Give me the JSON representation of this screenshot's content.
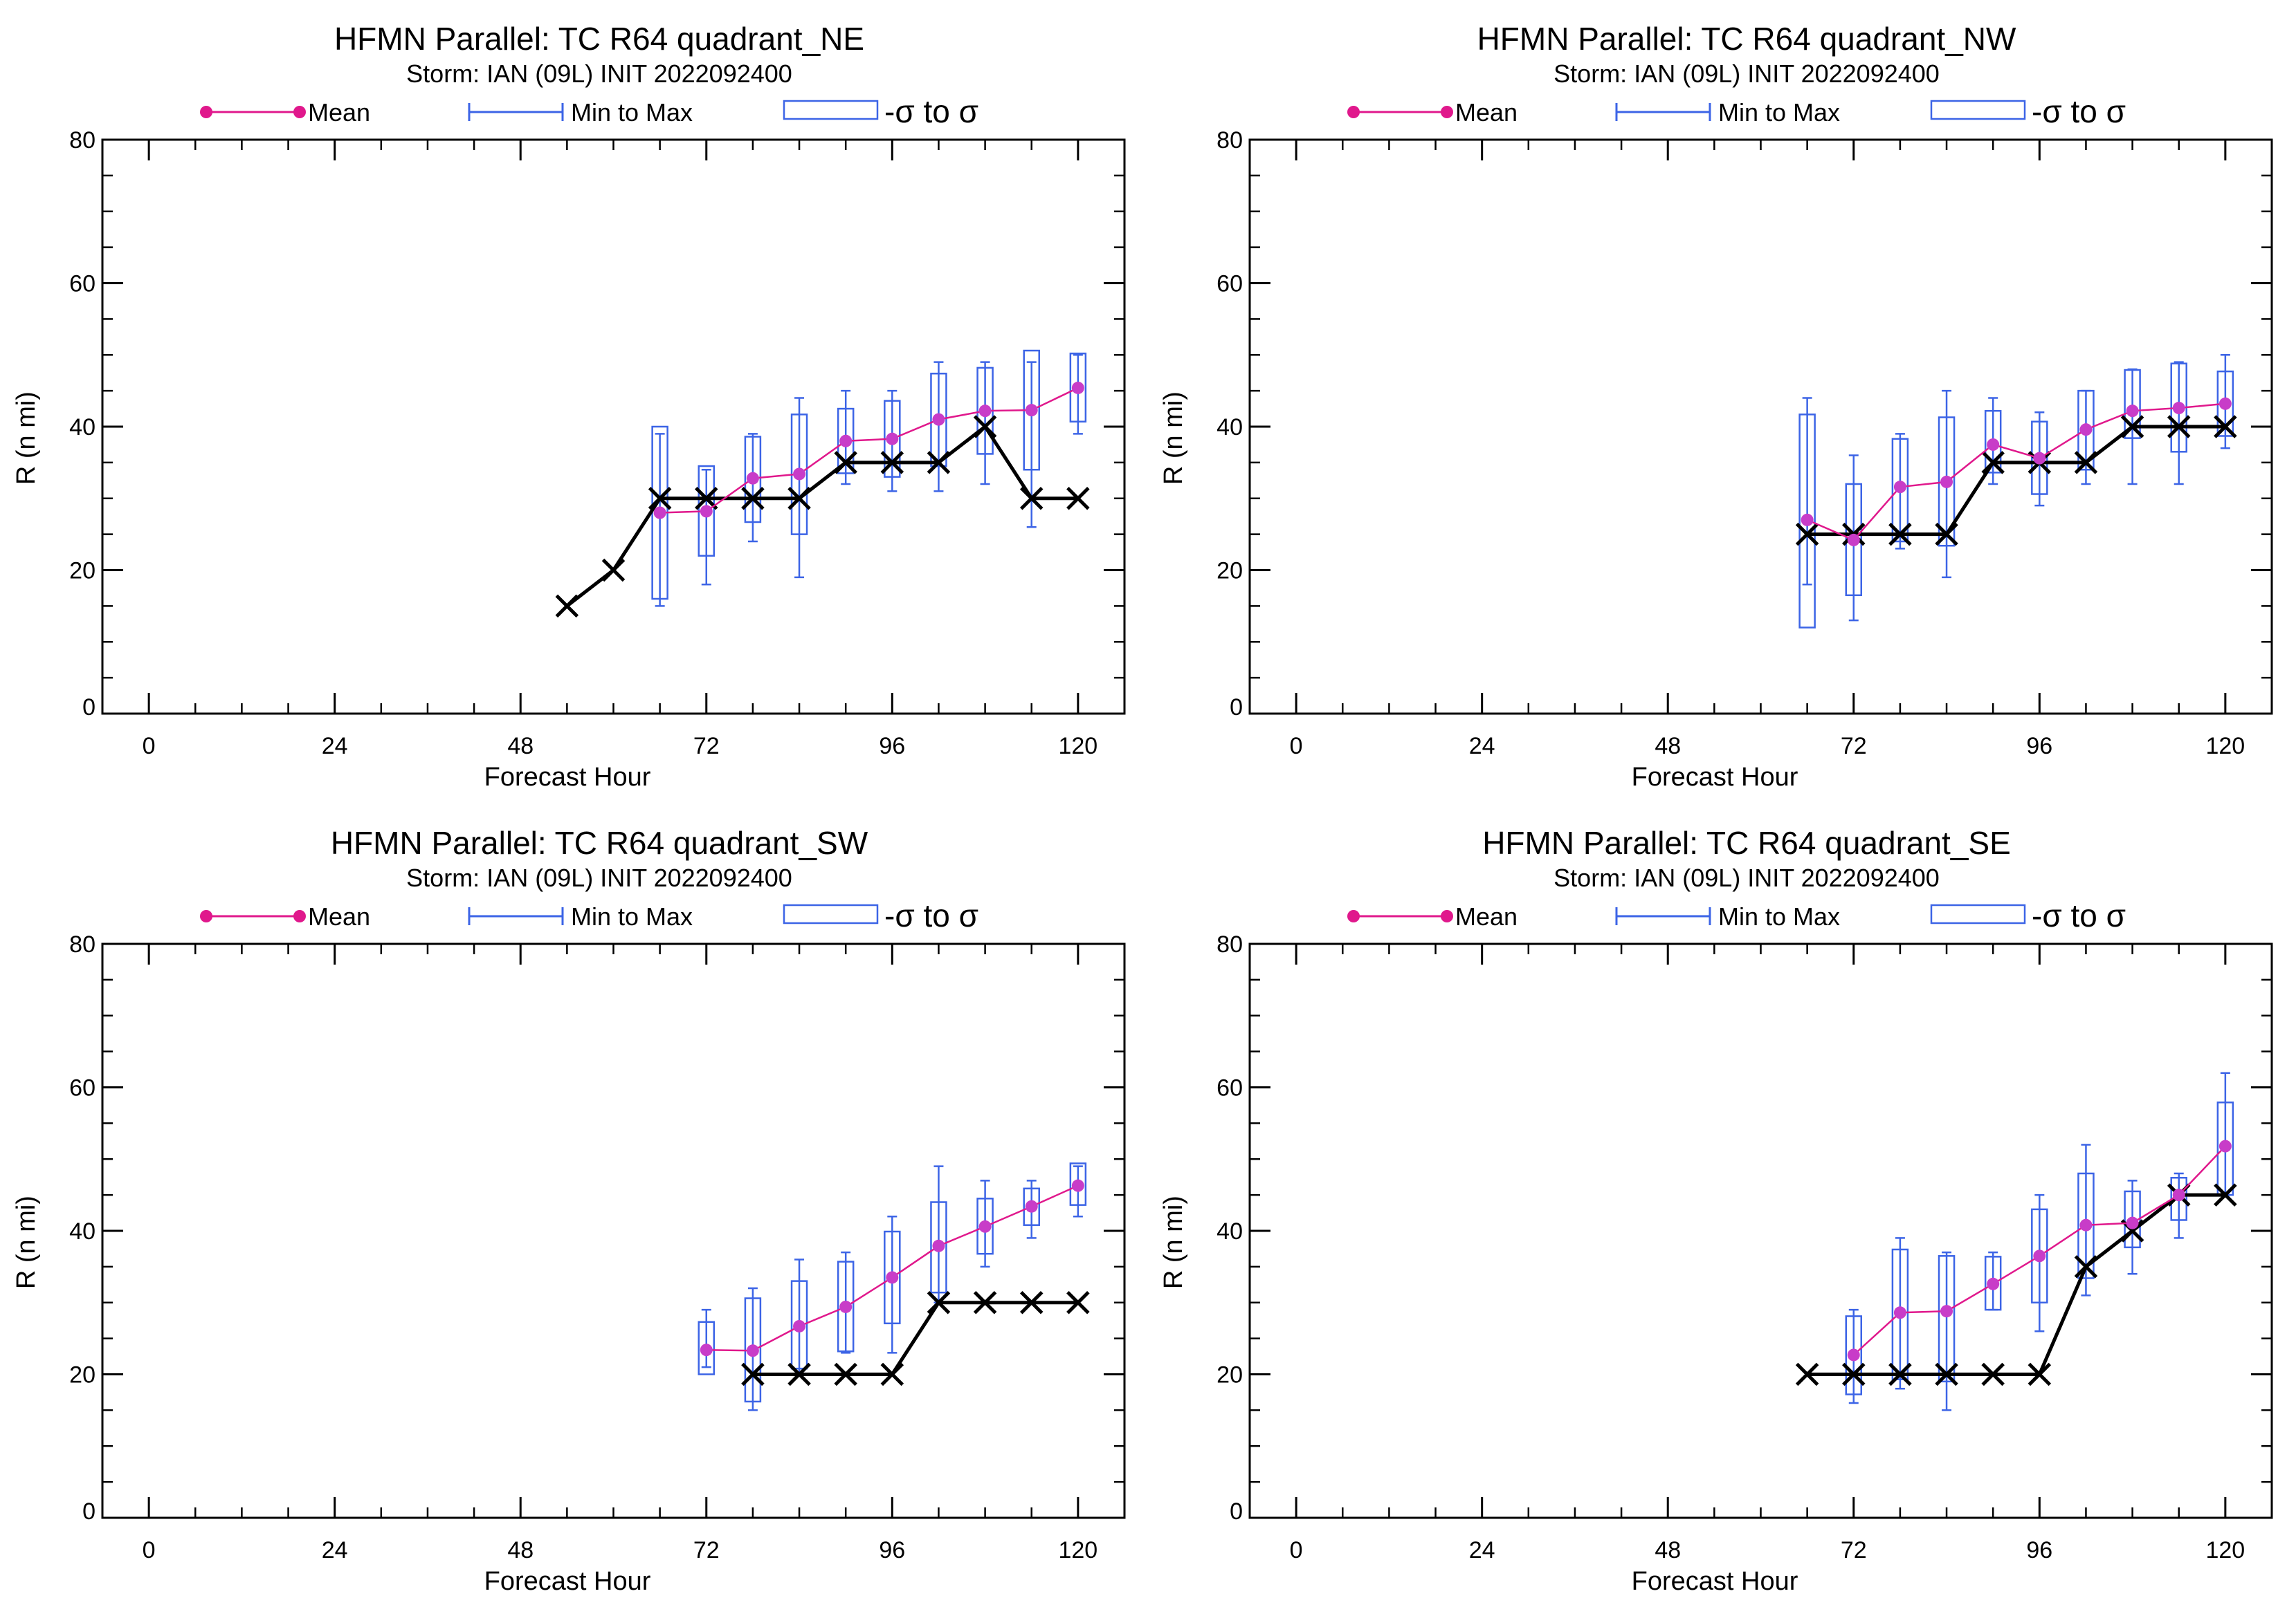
{
  "colors": {
    "mean": "#e0188c",
    "mean_marker": "#c83cc8",
    "range": "#3c64e6",
    "box": "#3c64e6",
    "best_track": "#000000"
  },
  "legend": {
    "mean_label": "Mean",
    "range_label": "Min to Max",
    "sigma_label": "-σ to σ"
  },
  "chart_data": [
    {
      "type": "box",
      "title": "HFMN Parallel: TC  R64 quadrant_NE",
      "subtitle": "Storm: IAN (09L) INIT 2022092400",
      "xlabel": "Forecast Hour",
      "ylabel": "R (n mi)",
      "xlim": [
        -6,
        126
      ],
      "ylim": [
        0,
        80
      ],
      "xticks": [
        "0",
        "24",
        "48",
        "72",
        "96",
        "120"
      ],
      "yticks": [
        "0",
        "20",
        "40",
        "60",
        "80"
      ],
      "best_track": {
        "x": [
          54,
          60,
          66,
          72,
          78,
          84,
          90,
          96,
          102,
          108,
          114,
          120
        ],
        "y": [
          15,
          20,
          30,
          30,
          30,
          30,
          35,
          35,
          35,
          40,
          30,
          30
        ]
      },
      "mean": {
        "x": [
          66,
          72,
          78,
          84,
          90,
          96,
          102,
          108,
          114,
          120
        ],
        "y": [
          28,
          28.2,
          32.8,
          33.4,
          38,
          38.3,
          41,
          42.2,
          42.3,
          45.4
        ]
      },
      "range": [
        {
          "x": 66,
          "min": 15,
          "max": 39
        },
        {
          "x": 72,
          "min": 18,
          "max": 34
        },
        {
          "x": 78,
          "min": 24,
          "max": 39
        },
        {
          "x": 84,
          "min": 19,
          "max": 44
        },
        {
          "x": 90,
          "min": 32,
          "max": 45
        },
        {
          "x": 96,
          "min": 31,
          "max": 45
        },
        {
          "x": 102,
          "min": 31,
          "max": 49
        },
        {
          "x": 108,
          "min": 32,
          "max": 49
        },
        {
          "x": 114,
          "min": 26,
          "max": 49
        },
        {
          "x": 120,
          "min": 39,
          "max": 50
        }
      ],
      "sigma": [
        {
          "x": 66,
          "low": 16,
          "high": 40
        },
        {
          "x": 72,
          "low": 22,
          "high": 34.5
        },
        {
          "x": 78,
          "low": 26.7,
          "high": 38.6
        },
        {
          "x": 84,
          "low": 25,
          "high": 41.7
        },
        {
          "x": 90,
          "low": 33.5,
          "high": 42.5
        },
        {
          "x": 96,
          "low": 33,
          "high": 43.6
        },
        {
          "x": 102,
          "low": 34.5,
          "high": 47.4
        },
        {
          "x": 108,
          "low": 36.2,
          "high": 48.2
        },
        {
          "x": 114,
          "low": 34,
          "high": 50.6
        },
        {
          "x": 120,
          "low": 40.7,
          "high": 50.2
        }
      ]
    },
    {
      "type": "box",
      "title": "HFMN Parallel: TC  R64 quadrant_NW",
      "subtitle": "Storm: IAN (09L) INIT 2022092400",
      "xlabel": "Forecast Hour",
      "ylabel": "R (n mi)",
      "xlim": [
        -6,
        126
      ],
      "ylim": [
        0,
        80
      ],
      "xticks": [
        "0",
        "24",
        "48",
        "72",
        "96",
        "120"
      ],
      "yticks": [
        "0",
        "20",
        "40",
        "60",
        "80"
      ],
      "best_track": {
        "x": [
          66,
          72,
          78,
          84,
          90,
          96,
          102,
          108,
          114,
          120
        ],
        "y": [
          25,
          25,
          25,
          25,
          35,
          35,
          35,
          40,
          40,
          40
        ]
      },
      "mean": {
        "x": [
          66,
          72,
          78,
          84,
          90,
          96,
          102,
          108,
          114,
          120
        ],
        "y": [
          27,
          24.2,
          31.6,
          32.3,
          37.5,
          35.6,
          39.6,
          42.2,
          42.6,
          43.2
        ]
      },
      "range": [
        {
          "x": 66,
          "min": 18,
          "max": 44
        },
        {
          "x": 72,
          "min": 13,
          "max": 36
        },
        {
          "x": 78,
          "min": 23,
          "max": 39
        },
        {
          "x": 84,
          "min": 19,
          "max": 45
        },
        {
          "x": 90,
          "min": 32,
          "max": 44
        },
        {
          "x": 96,
          "min": 29,
          "max": 42
        },
        {
          "x": 102,
          "min": 32,
          "max": 45
        },
        {
          "x": 108,
          "min": 32,
          "max": 48
        },
        {
          "x": 114,
          "min": 32,
          "max": 49
        },
        {
          "x": 120,
          "min": 37,
          "max": 50
        }
      ],
      "sigma": [
        {
          "x": 66,
          "low": 12,
          "high": 41.7
        },
        {
          "x": 72,
          "low": 16.5,
          "high": 32
        },
        {
          "x": 78,
          "low": 24,
          "high": 38.3
        },
        {
          "x": 84,
          "low": 23.4,
          "high": 41.3
        },
        {
          "x": 90,
          "low": 33.6,
          "high": 42.2
        },
        {
          "x": 96,
          "low": 30.6,
          "high": 40.7
        },
        {
          "x": 102,
          "low": 34,
          "high": 45
        },
        {
          "x": 108,
          "low": 38.4,
          "high": 47.9
        },
        {
          "x": 114,
          "low": 36.5,
          "high": 48.8
        },
        {
          "x": 120,
          "low": 38.7,
          "high": 47.7
        }
      ]
    },
    {
      "type": "box",
      "title": "HFMN Parallel: TC  R64 quadrant_SW",
      "subtitle": "Storm: IAN (09L) INIT 2022092400",
      "xlabel": "Forecast Hour",
      "ylabel": "R (n mi)",
      "xlim": [
        -6,
        126
      ],
      "ylim": [
        0,
        80
      ],
      "xticks": [
        "0",
        "24",
        "48",
        "72",
        "96",
        "120"
      ],
      "yticks": [
        "0",
        "20",
        "40",
        "60",
        "80"
      ],
      "best_track": {
        "x": [
          78,
          84,
          90,
          96,
          102,
          108,
          114,
          120
        ],
        "y": [
          20,
          20,
          20,
          20,
          30,
          30,
          30,
          30
        ]
      },
      "mean": {
        "x": [
          72,
          78,
          84,
          90,
          96,
          102,
          108,
          114,
          120
        ],
        "y": [
          23.4,
          23.3,
          26.7,
          29.4,
          33.5,
          37.9,
          40.6,
          43.4,
          46.3
        ]
      },
      "range": [
        {
          "x": 72,
          "min": 21,
          "max": 29
        },
        {
          "x": 78,
          "min": 15,
          "max": 32
        },
        {
          "x": 84,
          "min": 20,
          "max": 36
        },
        {
          "x": 90,
          "min": 23,
          "max": 37
        },
        {
          "x": 96,
          "min": 23,
          "max": 42
        },
        {
          "x": 102,
          "min": 30,
          "max": 49
        },
        {
          "x": 108,
          "min": 35,
          "max": 47
        },
        {
          "x": 114,
          "min": 39,
          "max": 47
        },
        {
          "x": 120,
          "min": 42,
          "max": 49
        }
      ],
      "sigma": [
        {
          "x": 72,
          "low": 20,
          "high": 27.3
        },
        {
          "x": 78,
          "low": 16.2,
          "high": 30.6
        },
        {
          "x": 84,
          "low": 20.8,
          "high": 33
        },
        {
          "x": 90,
          "low": 23.2,
          "high": 35.7
        },
        {
          "x": 96,
          "low": 27.1,
          "high": 39.9
        },
        {
          "x": 102,
          "low": 31.4,
          "high": 44
        },
        {
          "x": 108,
          "low": 36.8,
          "high": 44.5
        },
        {
          "x": 114,
          "low": 40.8,
          "high": 45.9
        },
        {
          "x": 120,
          "low": 43.6,
          "high": 49.4
        }
      ]
    },
    {
      "type": "box",
      "title": "HFMN Parallel: TC  R64 quadrant_SE",
      "subtitle": "Storm: IAN (09L) INIT 2022092400",
      "xlabel": "Forecast Hour",
      "ylabel": "R (n mi)",
      "xlim": [
        -6,
        126
      ],
      "ylim": [
        0,
        80
      ],
      "xticks": [
        "0",
        "24",
        "48",
        "72",
        "96",
        "120"
      ],
      "yticks": [
        "0",
        "20",
        "40",
        "60",
        "80"
      ],
      "best_track": {
        "x": [
          66,
          72,
          78,
          84,
          90,
          96,
          102,
          108,
          114,
          120
        ],
        "y": [
          20,
          20,
          20,
          20,
          20,
          20,
          35,
          40,
          45,
          45
        ]
      },
      "mean": {
        "x": [
          72,
          78,
          84,
          90,
          96,
          102,
          108,
          114,
          120
        ],
        "y": [
          22.7,
          28.6,
          28.8,
          32.6,
          36.5,
          40.8,
          41.1,
          45,
          51.8
        ]
      },
      "range": [
        {
          "x": 72,
          "min": 16,
          "max": 29
        },
        {
          "x": 78,
          "min": 18,
          "max": 39
        },
        {
          "x": 84,
          "min": 15,
          "max": 37
        },
        {
          "x": 90,
          "min": 29,
          "max": 37
        },
        {
          "x": 96,
          "min": 26,
          "max": 45
        },
        {
          "x": 102,
          "min": 31,
          "max": 52
        },
        {
          "x": 108,
          "min": 34,
          "max": 47
        },
        {
          "x": 114,
          "min": 39,
          "max": 48
        },
        {
          "x": 120,
          "min": 45,
          "max": 62
        }
      ],
      "sigma": [
        {
          "x": 72,
          "low": 17.2,
          "high": 28.1
        },
        {
          "x": 78,
          "low": 19.3,
          "high": 37.4
        },
        {
          "x": 84,
          "low": 19,
          "high": 36.5
        },
        {
          "x": 90,
          "low": 29,
          "high": 36.4
        },
        {
          "x": 96,
          "low": 30,
          "high": 43
        },
        {
          "x": 102,
          "low": 33.4,
          "high": 48
        },
        {
          "x": 108,
          "low": 37.7,
          "high": 45.5
        },
        {
          "x": 114,
          "low": 41.5,
          "high": 47.4
        },
        {
          "x": 120,
          "low": 45,
          "high": 57.9
        }
      ]
    }
  ]
}
